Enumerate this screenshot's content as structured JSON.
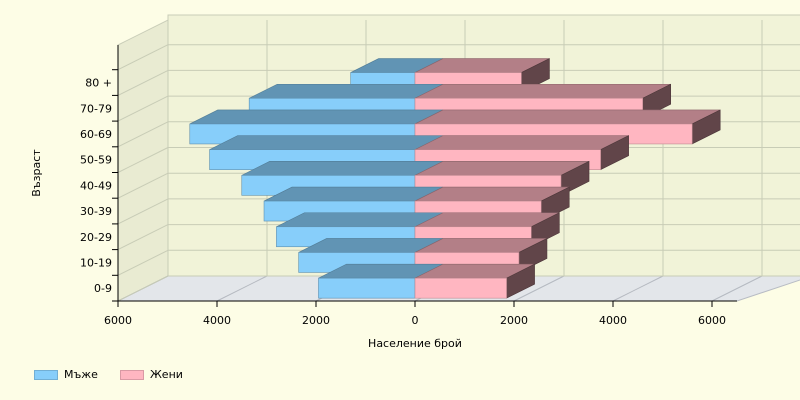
{
  "chart_data": {
    "type": "bar",
    "orientation": "horizontal",
    "style": "3d-population-pyramid",
    "categories": [
      "0-9",
      "10-19",
      "20-29",
      "30-39",
      "40-49",
      "50-59",
      "60-69",
      "70-79",
      "80 +"
    ],
    "series": [
      {
        "name": "Мъже",
        "color": "#87cefa",
        "values": [
          1950,
          2350,
          2800,
          3050,
          3500,
          4150,
          4550,
          3350,
          1300
        ]
      },
      {
        "name": "Жени",
        "color": "#ffb6c1",
        "values": [
          1850,
          2100,
          2350,
          2550,
          2950,
          3750,
          5600,
          4600,
          2150
        ]
      }
    ],
    "xlabel": "Население брой",
    "ylabel": "Възраст",
    "xlim": [
      -6000,
      6000
    ],
    "xticks": [
      "6000",
      "4000",
      "2000",
      "0",
      "2000",
      "4000",
      "6000"
    ],
    "grid": true,
    "legend_position": "bottom-left"
  },
  "colors": {
    "background": "#fdfde6",
    "men": "#87cefa",
    "women": "#ffb6c1"
  }
}
